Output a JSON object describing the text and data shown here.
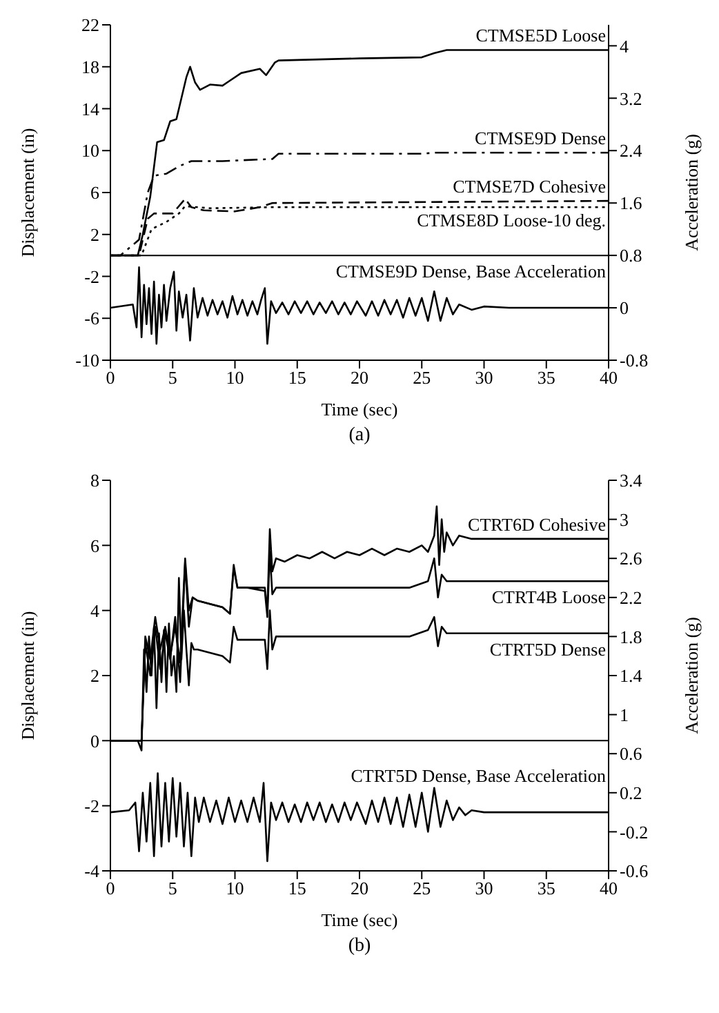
{
  "chart_data": [
    {
      "type": "line",
      "xlabel": "Time (sec)",
      "ylabel": "Displacement (in)",
      "y2label": "Acceleration (g)",
      "annotations": [
        "(a)"
      ],
      "xlim": [
        0,
        40
      ],
      "xticks": [
        0,
        5,
        10,
        15,
        20,
        25,
        30,
        35,
        40
      ],
      "ylim": [
        -10,
        22
      ],
      "yticks": [
        -10,
        -6,
        -2,
        2,
        6,
        10,
        14,
        18,
        22
      ],
      "y2lim": [
        -0.8,
        4.32
      ],
      "y2ticks": [
        -0.8,
        0,
        0.8,
        1.6,
        2.4,
        3.2,
        4
      ],
      "ref_lines": [
        {
          "axis": "y",
          "value": 0,
          "color": "#000000"
        }
      ],
      "series": [
        {
          "name": "CTMSE5D Loose",
          "color": "#000000",
          "line_style": "solid",
          "x": [
            0,
            2.2,
            2.6,
            3.2,
            3.75,
            4.3,
            4.8,
            5.3,
            6.1,
            6.4,
            6.8,
            7.2,
            8,
            9,
            9.5,
            10.5,
            12,
            12.5,
            13.2,
            13.5,
            20,
            25,
            26,
            27,
            40
          ],
          "values": [
            0,
            0,
            2,
            5.6,
            10.8,
            11,
            12.8,
            13,
            17,
            18,
            16.5,
            15.8,
            16.3,
            16.2,
            16.6,
            17.4,
            17.8,
            17.2,
            18.4,
            18.6,
            18.8,
            18.9,
            19.3,
            19.6,
            19.6
          ]
        },
        {
          "name": "CTMSE9D Dense",
          "color": "#000000",
          "line_style": "dashdot",
          "x": [
            0,
            0.8,
            2.3,
            3,
            3.5,
            4.5,
            5.5,
            6.5,
            9,
            13,
            13.5,
            25,
            26,
            40
          ],
          "values": [
            0,
            0,
            1.5,
            6,
            7.6,
            7.8,
            8.5,
            9,
            9,
            9.2,
            9.7,
            9.7,
            9.8,
            9.8
          ]
        },
        {
          "name": "CTMSE7D Cohesive",
          "color": "#000000",
          "line_style": "dashed",
          "x": [
            0,
            2.3,
            3,
            3.5,
            5,
            6,
            6.5,
            7.5,
            10,
            12,
            13,
            40
          ],
          "values": [
            0,
            0,
            3.5,
            4,
            4,
            5.4,
            4.6,
            4.3,
            4.2,
            4.6,
            5,
            5.2
          ]
        },
        {
          "name": "CTMSE8D Loose-10 deg.",
          "color": "#000000",
          "line_style": "dotted",
          "x": [
            0,
            2.5,
            3.3,
            3.8,
            4.5,
            5.5,
            6,
            8,
            13,
            40
          ],
          "values": [
            0,
            0,
            2.5,
            2.8,
            3.2,
            4,
            4.7,
            4.5,
            4.6,
            4.6
          ]
        },
        {
          "name": "CTMSE9D Dense, Base Acceleration",
          "color": "#000000",
          "line_style": "solid",
          "axis": "y2",
          "x": [
            0,
            1.8,
            2.1,
            2.3,
            2.5,
            2.7,
            2.9,
            3.1,
            3.3,
            3.5,
            3.7,
            3.9,
            4.1,
            4.3,
            4.5,
            4.8,
            5.1,
            5.3,
            5.5,
            5.8,
            6.1,
            6.4,
            6.7,
            7,
            7.4,
            7.8,
            8.2,
            8.6,
            9,
            9.4,
            9.8,
            10.2,
            10.6,
            11,
            11.4,
            11.8,
            12.1,
            12.4,
            12.6,
            12.9,
            13.3,
            13.8,
            14.3,
            14.8,
            15.3,
            15.8,
            16.3,
            16.8,
            17.3,
            17.8,
            18.3,
            18.8,
            19.3,
            19.8,
            20.5,
            21,
            21.5,
            22,
            22.5,
            23,
            23.5,
            24,
            24.5,
            25,
            25.5,
            26,
            26.5,
            27,
            27.5,
            28,
            29,
            30,
            32,
            35,
            40
          ],
          "values": [
            0,
            0.05,
            -0.3,
            0.62,
            -0.45,
            0.35,
            -0.25,
            0.3,
            -0.4,
            0.4,
            -0.55,
            0.2,
            -0.3,
            0.35,
            -0.2,
            0.3,
            0.55,
            -0.35,
            0.25,
            -0.15,
            0.2,
            -0.5,
            0.3,
            -0.15,
            0.15,
            -0.12,
            0.12,
            -0.1,
            0.1,
            -0.15,
            0.18,
            -0.1,
            0.12,
            -0.12,
            0.1,
            -0.1,
            0.12,
            0.3,
            -0.55,
            0.1,
            -0.08,
            0.08,
            -0.1,
            0.1,
            -0.08,
            0.1,
            -0.1,
            0.08,
            -0.08,
            0.1,
            -0.1,
            0.08,
            -0.1,
            0.1,
            -0.12,
            0.1,
            -0.12,
            0.12,
            -0.1,
            0.12,
            -0.15,
            0.15,
            -0.12,
            0.15,
            -0.2,
            0.25,
            -0.2,
            0.15,
            -0.1,
            0.05,
            -0.03,
            0.02,
            0,
            0,
            0
          ]
        }
      ]
    },
    {
      "type": "line",
      "xlabel": "Time (sec)",
      "ylabel": "Displacement (in)",
      "y2label": "Acceleration (g)",
      "annotations": [
        "(b)"
      ],
      "xlim": [
        0,
        40
      ],
      "xticks": [
        0,
        5,
        10,
        15,
        20,
        25,
        30,
        35,
        40
      ],
      "ylim": [
        -4,
        8
      ],
      "yticks": [
        -4,
        -2,
        0,
        2,
        4,
        6,
        8
      ],
      "y2lim": [
        -0.6,
        3.4
      ],
      "y2ticks": [
        -0.6,
        -0.2,
        0.2,
        0.6,
        1,
        1.4,
        1.8,
        2.2,
        2.6,
        3,
        3.4
      ],
      "ref_lines": [
        {
          "axis": "y",
          "value": 0,
          "color": "#000000"
        }
      ],
      "series": [
        {
          "name": "CTRT6D Cohesive",
          "color": "#000000",
          "line_style": "solid",
          "x": [
            0,
            2.5,
            2.8,
            3.2,
            3.6,
            4,
            4.4,
            4.8,
            5.2,
            5.6,
            6,
            6.3,
            6.6,
            7,
            8,
            9,
            9.6,
            9.9,
            10.2,
            11,
            12.4,
            12.6,
            12.8,
            13,
            13.3,
            14,
            15,
            16,
            17,
            18,
            19,
            20,
            21,
            22,
            23,
            24,
            25,
            25.5,
            26,
            26.2,
            26.4,
            26.6,
            26.8,
            27,
            27.5,
            28,
            29,
            40
          ],
          "values": [
            0,
            0,
            3.2,
            2.5,
            3.8,
            2.8,
            3.5,
            2.6,
            3.5,
            2.4,
            5.6,
            4,
            4.4,
            4.3,
            4.2,
            4.1,
            3.9,
            5.4,
            4.7,
            4.7,
            4.7,
            4,
            6.5,
            5.2,
            5.6,
            5.5,
            5.7,
            5.6,
            5.8,
            5.6,
            5.8,
            5.7,
            5.9,
            5.7,
            5.9,
            5.8,
            6,
            5.8,
            6.3,
            7.2,
            5.4,
            6.8,
            5.8,
            6.4,
            6,
            6.3,
            6.2,
            6.2
          ]
        },
        {
          "name": "CTRT4B Loose",
          "color": "#000000",
          "line_style": "solid",
          "x": [
            0,
            2.5,
            2.8,
            3.2,
            3.6,
            4,
            4.4,
            4.8,
            5.2,
            5.6,
            6,
            6.3,
            6.6,
            7,
            8,
            9,
            9.6,
            9.9,
            10.2,
            11,
            12.4,
            12.6,
            12.8,
            13,
            13.3,
            15,
            20,
            24,
            25.5,
            26,
            26.3,
            26.6,
            27,
            28,
            40
          ],
          "values": [
            0,
            0,
            3,
            2,
            3.5,
            2.2,
            3.3,
            2.5,
            3.8,
            1.8,
            5.5,
            3.5,
            4.4,
            4.3,
            4.2,
            4.1,
            3.9,
            5.3,
            4.7,
            4.7,
            4.6,
            3.8,
            5.8,
            4.5,
            4.7,
            4.7,
            4.7,
            4.7,
            4.9,
            5.6,
            4.4,
            5.1,
            4.9,
            4.9,
            4.9
          ]
        },
        {
          "name": "CTRT5D Dense",
          "color": "#000000",
          "line_style": "solid",
          "x": [
            0,
            2.2,
            2.5,
            2.7,
            2.9,
            3.1,
            3.3,
            3.5,
            3.7,
            3.9,
            4.1,
            4.3,
            4.5,
            4.7,
            4.9,
            5.1,
            5.3,
            5.5,
            5.7,
            5.9,
            6.1,
            6.3,
            6.5,
            6.7,
            7,
            8,
            9,
            9.6,
            9.9,
            10.2,
            11,
            12.4,
            12.6,
            12.8,
            13,
            13.3,
            15,
            20,
            24,
            25.5,
            26,
            26.3,
            26.6,
            27,
            28,
            40
          ],
          "values": [
            0,
            0,
            -0.3,
            2.8,
            1.5,
            3.2,
            2,
            3.5,
            1,
            3.3,
            1.8,
            3.4,
            1.5,
            3.6,
            2,
            2.6,
            1.5,
            5,
            2.5,
            4,
            2.8,
            1.7,
            3,
            2.8,
            2.8,
            2.7,
            2.6,
            2.4,
            3.5,
            3.1,
            3.1,
            3.1,
            2.2,
            4,
            2.8,
            3.2,
            3.2,
            3.2,
            3.2,
            3.4,
            3.8,
            2.9,
            3.5,
            3.3,
            3.3,
            3.3
          ]
        },
        {
          "name": "CTRT5D Dense, Base Acceleration",
          "color": "#000000",
          "line_style": "solid",
          "axis": "y2",
          "x": [
            0,
            1.5,
            2,
            2.3,
            2.6,
            2.9,
            3.2,
            3.5,
            3.8,
            4.1,
            4.4,
            4.7,
            5,
            5.3,
            5.6,
            5.9,
            6.2,
            6.5,
            6.8,
            7.1,
            7.5,
            8,
            8.5,
            9,
            9.5,
            10,
            10.5,
            11,
            11.5,
            12,
            12.3,
            12.6,
            12.9,
            13.3,
            13.8,
            14.3,
            14.8,
            15.3,
            15.8,
            16.3,
            16.8,
            17.3,
            17.8,
            18.3,
            18.8,
            19.3,
            19.8,
            20.5,
            21,
            21.5,
            22,
            22.5,
            23,
            23.5,
            24,
            24.5,
            25,
            25.5,
            26,
            26.5,
            27,
            27.5,
            28,
            28.5,
            29,
            30,
            32,
            35,
            40
          ],
          "values": [
            0,
            0.02,
            0.1,
            -0.4,
            0.2,
            -0.3,
            0.3,
            -0.45,
            0.4,
            -0.35,
            0.3,
            -0.3,
            0.35,
            -0.25,
            0.3,
            -0.35,
            0.2,
            -0.45,
            0.15,
            -0.1,
            0.15,
            -0.1,
            0.12,
            -0.12,
            0.15,
            -0.1,
            0.12,
            -0.1,
            0.15,
            -0.1,
            0.3,
            -0.5,
            0.1,
            -0.08,
            0.1,
            -0.1,
            0.08,
            -0.1,
            0.1,
            -0.08,
            0.1,
            -0.1,
            0.08,
            -0.1,
            0.1,
            -0.08,
            0.1,
            -0.12,
            0.12,
            -0.1,
            0.15,
            -0.12,
            0.15,
            -0.15,
            0.18,
            -0.15,
            0.2,
            -0.2,
            0.25,
            -0.15,
            0.12,
            -0.08,
            0.05,
            -0.03,
            0.02,
            0,
            0,
            0,
            0
          ]
        }
      ]
    }
  ]
}
